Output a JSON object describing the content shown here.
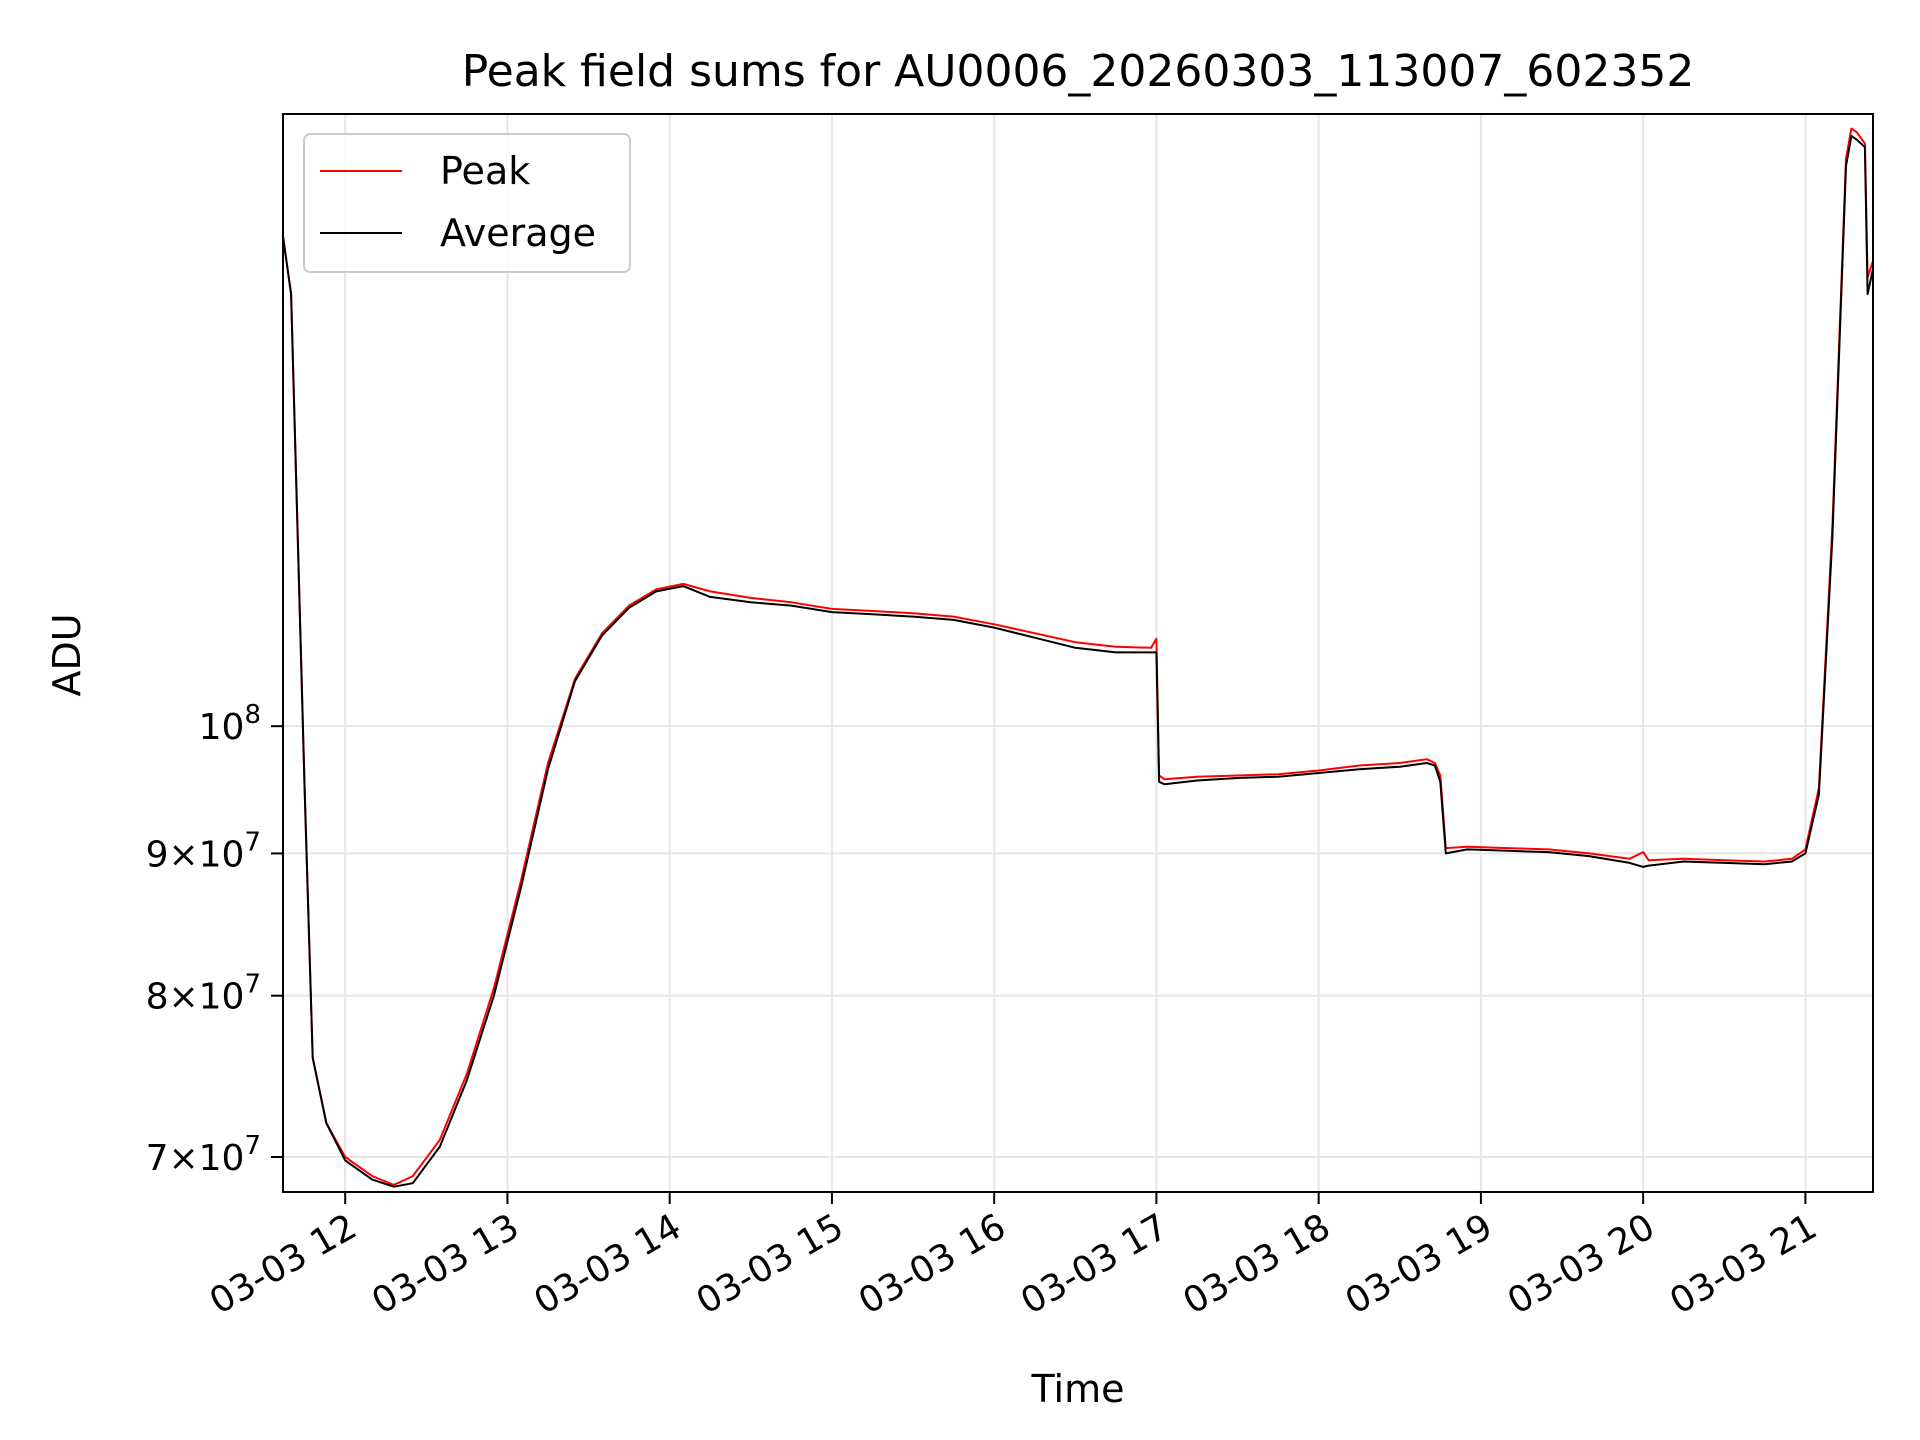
{
  "chart_data": {
    "type": "line",
    "title": "Peak field sums for AU0006_20260303_113007_602352",
    "xlabel": "Time",
    "ylabel": "ADU",
    "x_range": [
      "2026-03-03 11:37",
      "2026-03-03 21:25"
    ],
    "y_scale": "log",
    "ylim": [
      68000000,
      166000000
    ],
    "x_ticks": [
      {
        "value": "2026-03-03 12:00",
        "label": "03-03 12"
      },
      {
        "value": "2026-03-03 13:00",
        "label": "03-03 13"
      },
      {
        "value": "2026-03-03 14:00",
        "label": "03-03 14"
      },
      {
        "value": "2026-03-03 15:00",
        "label": "03-03 15"
      },
      {
        "value": "2026-03-03 16:00",
        "label": "03-03 16"
      },
      {
        "value": "2026-03-03 17:00",
        "label": "03-03 17"
      },
      {
        "value": "2026-03-03 18:00",
        "label": "03-03 18"
      },
      {
        "value": "2026-03-03 19:00",
        "label": "03-03 19"
      },
      {
        "value": "2026-03-03 20:00",
        "label": "03-03 20"
      },
      {
        "value": "2026-03-03 21:00",
        "label": "03-03 21"
      }
    ],
    "y_ticks": [
      {
        "value": 70000000,
        "mant": "7",
        "exp": "7"
      },
      {
        "value": 80000000,
        "mant": "8",
        "exp": "7"
      },
      {
        "value": 90000000,
        "mant": "9",
        "exp": "7"
      },
      {
        "value": 100000000,
        "mant": "",
        "exp": "8"
      }
    ],
    "grid": true,
    "legend_position": "top-left",
    "series": [
      {
        "name": "Peak",
        "color": "#ff0000",
        "x": [
          "2026-03-03 11:37",
          "2026-03-03 11:40",
          "2026-03-03 11:45",
          "2026-03-03 11:48",
          "2026-03-03 11:53",
          "2026-03-03 12:00",
          "2026-03-03 12:10",
          "2026-03-03 12:18",
          "2026-03-03 12:25",
          "2026-03-03 12:35",
          "2026-03-03 12:45",
          "2026-03-03 12:55",
          "2026-03-03 13:05",
          "2026-03-03 13:15",
          "2026-03-03 13:25",
          "2026-03-03 13:35",
          "2026-03-03 13:45",
          "2026-03-03 13:55",
          "2026-03-03 14:05",
          "2026-03-03 14:15",
          "2026-03-03 14:30",
          "2026-03-03 14:45",
          "2026-03-03 15:00",
          "2026-03-03 15:15",
          "2026-03-03 15:30",
          "2026-03-03 15:45",
          "2026-03-03 16:00",
          "2026-03-03 16:15",
          "2026-03-03 16:30",
          "2026-03-03 16:45",
          "2026-03-03 16:58",
          "2026-03-03 17:00",
          "2026-03-03 17:01",
          "2026-03-03 17:03",
          "2026-03-03 17:15",
          "2026-03-03 17:30",
          "2026-03-03 17:45",
          "2026-03-03 18:00",
          "2026-03-03 18:15",
          "2026-03-03 18:30",
          "2026-03-03 18:40",
          "2026-03-03 18:43",
          "2026-03-03 18:45",
          "2026-03-03 18:47",
          "2026-03-03 18:55",
          "2026-03-03 19:10",
          "2026-03-03 19:25",
          "2026-03-03 19:40",
          "2026-03-03 19:55",
          "2026-03-03 20:00",
          "2026-03-03 20:02",
          "2026-03-03 20:15",
          "2026-03-03 20:30",
          "2026-03-03 20:45",
          "2026-03-03 20:55",
          "2026-03-03 21:00",
          "2026-03-03 21:05",
          "2026-03-03 21:10",
          "2026-03-03 21:15",
          "2026-03-03 21:17",
          "2026-03-03 21:19",
          "2026-03-03 21:22",
          "2026-03-03 21:23",
          "2026-03-03 21:25"
        ],
        "values": [
          150000000,
          143000000,
          95000000,
          76000000,
          72000000,
          70000000,
          68900000,
          68400000,
          68900000,
          71000000,
          75000000,
          80500000,
          88000000,
          97000000,
          104000000,
          108000000,
          110500000,
          112000000,
          112500000,
          111800000,
          111200000,
          110800000,
          110200000,
          110000000,
          109800000,
          109500000,
          108800000,
          108000000,
          107200000,
          106800000,
          106700000,
          107500000,
          96000000,
          95700000,
          95900000,
          96000000,
          96100000,
          96400000,
          96800000,
          97000000,
          97300000,
          97000000,
          96000000,
          90400000,
          90500000,
          90400000,
          90300000,
          90000000,
          89600000,
          90100000,
          89500000,
          89600000,
          89500000,
          89400000,
          89600000,
          90300000,
          95000000,
          118000000,
          160000000,
          164000000,
          163500000,
          162000000,
          145000000,
          147000000
        ]
      },
      {
        "name": "Average",
        "color": "#000000",
        "x": [
          "2026-03-03 11:37",
          "2026-03-03 11:40",
          "2026-03-03 11:45",
          "2026-03-03 11:48",
          "2026-03-03 11:53",
          "2026-03-03 12:00",
          "2026-03-03 12:10",
          "2026-03-03 12:18",
          "2026-03-03 12:25",
          "2026-03-03 12:35",
          "2026-03-03 12:45",
          "2026-03-03 12:55",
          "2026-03-03 13:05",
          "2026-03-03 13:15",
          "2026-03-03 13:25",
          "2026-03-03 13:35",
          "2026-03-03 13:45",
          "2026-03-03 13:55",
          "2026-03-03 14:05",
          "2026-03-03 14:15",
          "2026-03-03 14:30",
          "2026-03-03 14:45",
          "2026-03-03 15:00",
          "2026-03-03 15:15",
          "2026-03-03 15:30",
          "2026-03-03 15:45",
          "2026-03-03 16:00",
          "2026-03-03 16:15",
          "2026-03-03 16:30",
          "2026-03-03 16:45",
          "2026-03-03 16:58",
          "2026-03-03 17:00",
          "2026-03-03 17:01",
          "2026-03-03 17:03",
          "2026-03-03 17:15",
          "2026-03-03 17:30",
          "2026-03-03 17:45",
          "2026-03-03 18:00",
          "2026-03-03 18:15",
          "2026-03-03 18:30",
          "2026-03-03 18:40",
          "2026-03-03 18:43",
          "2026-03-03 18:45",
          "2026-03-03 18:47",
          "2026-03-03 18:55",
          "2026-03-03 19:10",
          "2026-03-03 19:25",
          "2026-03-03 19:40",
          "2026-03-03 19:55",
          "2026-03-03 20:00",
          "2026-03-03 20:02",
          "2026-03-03 20:15",
          "2026-03-03 20:30",
          "2026-03-03 20:45",
          "2026-03-03 20:55",
          "2026-03-03 21:00",
          "2026-03-03 21:05",
          "2026-03-03 21:10",
          "2026-03-03 21:15",
          "2026-03-03 21:17",
          "2026-03-03 21:19",
          "2026-03-03 21:22",
          "2026-03-03 21:23",
          "2026-03-03 21:25"
        ],
        "values": [
          150000000,
          143000000,
          95000000,
          76000000,
          72000000,
          69800000,
          68700000,
          68300000,
          68500000,
          70600000,
          74600000,
          80000000,
          87500000,
          96500000,
          103800000,
          107800000,
          110300000,
          111800000,
          112300000,
          111300000,
          110800000,
          110500000,
          109900000,
          109700000,
          109500000,
          109200000,
          108500000,
          107600000,
          106700000,
          106300000,
          106300000,
          106300000,
          95500000,
          95300000,
          95600000,
          95800000,
          95900000,
          96200000,
          96500000,
          96700000,
          97000000,
          96800000,
          95500000,
          90000000,
          90300000,
          90200000,
          90100000,
          89800000,
          89300000,
          89000000,
          89100000,
          89400000,
          89300000,
          89200000,
          89400000,
          90000000,
          94500000,
          117000000,
          159000000,
          163000000,
          162500000,
          161500000,
          143000000,
          146000000
        ]
      }
    ]
  }
}
